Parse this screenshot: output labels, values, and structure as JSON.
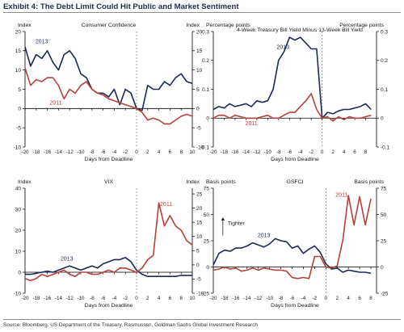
{
  "exhibit_title": "Exhibit 4: The Debt Limit Could Hit Public and Market Sentiment",
  "source_note": "Source: Bloomberg, US Department of the Treasury, Rasmussen, Goldman Sachs Global Investment Research",
  "colors": {
    "series_2013": "#1b2a55",
    "series_2011": "#b5413a",
    "axis": "#000000",
    "deadline_line": "#8a8a8a"
  },
  "chart_data": [
    {
      "id": "consumer-confidence",
      "type": "line",
      "title": "Consumer Confidence",
      "left_unit": "Index",
      "right_unit": "Index",
      "xlabel": "Days from Deadline",
      "xlim": [
        -20,
        10
      ],
      "xticks": [
        -20,
        -18,
        -16,
        -14,
        -12,
        -10,
        -8,
        -6,
        -4,
        -2,
        0,
        2,
        4,
        6,
        8,
        10
      ],
      "ylim": [
        -10,
        20
      ],
      "yticks": [
        -10,
        -5,
        0,
        5,
        10,
        15,
        20
      ],
      "right_ylim": [
        -10,
        20
      ],
      "right_yticks": [
        -10,
        -5,
        0,
        5,
        10,
        15,
        20
      ],
      "deadline": 0,
      "series": [
        {
          "name": "2013",
          "color": "#1b2a55",
          "x": [
            -20,
            -19,
            -18,
            -17,
            -16,
            -15,
            -14,
            -13,
            -12,
            -11,
            -10,
            -9,
            -8,
            -7,
            -6,
            -5,
            -4,
            -3,
            -2,
            -1,
            0,
            1,
            2,
            3,
            4,
            5,
            6,
            7,
            8,
            9,
            10
          ],
          "y": [
            16,
            11,
            14,
            13,
            15,
            12,
            10,
            14,
            15,
            13,
            9,
            8,
            5,
            4,
            4,
            3,
            5,
            1,
            5,
            4,
            0,
            -0.5,
            6,
            5,
            5,
            7,
            6,
            8,
            9,
            7,
            6.5
          ]
        },
        {
          "name": "2011",
          "color": "#b5413a",
          "x": [
            -20,
            -19,
            -18,
            -17,
            -16,
            -15,
            -14,
            -13,
            -12,
            -11,
            -10,
            -9,
            -8,
            -7,
            -6,
            -5,
            -4,
            -3,
            -2,
            -1,
            0,
            1,
            2,
            3,
            4,
            5,
            6,
            7,
            8,
            9,
            10
          ],
          "y": [
            10.5,
            6,
            7.5,
            7,
            8,
            8,
            6,
            2.5,
            5,
            4,
            6,
            7,
            5,
            4,
            3.5,
            2.5,
            2,
            1.5,
            1,
            0.5,
            0,
            -1,
            -3,
            -2.5,
            -3,
            -4,
            -4,
            -3,
            -2,
            -1.5,
            -2
          ]
        }
      ],
      "series_labels": [
        {
          "text": "2013",
          "x": -17,
          "y": 17
        },
        {
          "text": "2011",
          "x": -14.5,
          "y": 1
        }
      ]
    },
    {
      "id": "bill-yield-spread",
      "type": "line",
      "title": "4-Week Treasury Bill Yield Minus 13-Week Bill Yield",
      "left_unit": "Percentage points",
      "right_unit": "Percentage points",
      "xlabel": "Days from Deadline",
      "xlim": [
        -20,
        10
      ],
      "xticks": [
        -20,
        -18,
        -16,
        -14,
        -12,
        -10,
        -8,
        -6,
        -4,
        -2,
        0,
        2,
        4,
        6,
        8
      ],
      "ylim": [
        -0.1,
        0.3
      ],
      "yticks": [
        -0.1,
        0,
        0.1,
        0.2,
        0.3
      ],
      "right_ylim": [
        -0.1,
        0.3
      ],
      "right_yticks": [
        -0.1,
        0,
        0.1,
        0.2,
        0.3
      ],
      "deadline": 0,
      "series": [
        {
          "name": "2013",
          "color": "#1b2a55",
          "x": [
            -20,
            -19,
            -18,
            -17,
            -16,
            -15,
            -14,
            -13,
            -12,
            -11,
            -10,
            -9,
            -8,
            -7,
            -6,
            -5,
            -4,
            -3,
            -2,
            -1,
            0,
            1,
            2,
            3,
            4,
            5,
            6,
            7,
            8,
            9
          ],
          "y": [
            0.03,
            0.04,
            0.035,
            0.05,
            0.04,
            0.045,
            0.05,
            0.04,
            0.06,
            0.055,
            0.06,
            0.1,
            0.2,
            0.23,
            0.28,
            0.27,
            0.28,
            0.26,
            0.24,
            0.24,
            0.0,
            0.02,
            0.015,
            0.025,
            0.03,
            0.03,
            0.035,
            0.04,
            0.05,
            0.03
          ]
        },
        {
          "name": "2011",
          "color": "#b5413a",
          "x": [
            -20,
            -19,
            -18,
            -17,
            -16,
            -15,
            -14,
            -13,
            -12,
            -11,
            -10,
            -9,
            -8,
            -7,
            -6,
            -5,
            -4,
            -3,
            -2,
            -1,
            0,
            1,
            2,
            3,
            4,
            5,
            6,
            7,
            8,
            9
          ],
          "y": [
            0,
            0.01,
            0.01,
            0,
            0.01,
            0.005,
            0,
            0,
            0,
            0.005,
            0.01,
            0,
            0,
            0.01,
            0.02,
            0.02,
            0.04,
            0.06,
            0.085,
            0.03,
            0,
            0.005,
            -0.01,
            0.005,
            -0.005,
            0.005,
            0,
            0,
            0.005,
            0.01
          ]
        }
      ],
      "series_labels": [
        {
          "text": "2013",
          "x": -7.2,
          "y": 0.24
        },
        {
          "text": "2011",
          "x": -13,
          "y": -0.025
        }
      ]
    },
    {
      "id": "vix",
      "type": "line",
      "title": "VIX",
      "left_unit": "Index",
      "right_unit": "Index",
      "xlabel": "Days from Deadline",
      "xlim": [
        -20,
        10
      ],
      "xticks": [
        -20,
        -18,
        -16,
        -14,
        -12,
        -10,
        -8,
        -6,
        -4,
        -2,
        0,
        2,
        4,
        6,
        8,
        10
      ],
      "ylim": [
        -10,
        40
      ],
      "yticks": [
        -10,
        0,
        10,
        20,
        30,
        40
      ],
      "right_ylim": [
        -10,
        27
      ],
      "right_yticks": [
        -10,
        -5,
        0,
        5,
        10,
        15,
        20,
        25
      ],
      "deadline": 0,
      "series": [
        {
          "name": "2013",
          "color": "#1b2a55",
          "x": [
            -20,
            -19,
            -18,
            -17,
            -16,
            -15,
            -14,
            -13,
            -12,
            -11,
            -10,
            -9,
            -8,
            -7,
            -6,
            -5,
            -4,
            -3,
            -2,
            -1,
            0,
            1,
            2,
            3,
            4,
            5,
            6,
            7,
            8,
            9,
            10
          ],
          "y": [
            -1,
            -1,
            -0.5,
            0,
            0.5,
            0,
            1,
            2,
            3,
            2,
            1,
            2,
            3,
            2,
            4,
            5,
            6,
            6,
            7,
            5,
            1,
            -1,
            -2,
            -2,
            -2,
            -2,
            -2,
            -2,
            -1.5,
            -1.5,
            -1.5
          ]
        },
        {
          "name": "2011",
          "color": "#b5413a",
          "x": [
            -20,
            -19,
            -18,
            -17,
            -16,
            -15,
            -14,
            -13,
            -12,
            -11,
            -10,
            -9,
            -8,
            -7,
            -6,
            -5,
            -4,
            -3,
            -2,
            -1,
            0,
            1,
            2,
            3,
            4,
            5,
            6,
            7,
            8,
            9,
            10
          ],
          "y": [
            -3,
            -4,
            -3,
            -1,
            -2,
            -1,
            0,
            1,
            -1,
            -2,
            0,
            0,
            -1,
            -1,
            0,
            1,
            0,
            2,
            2,
            1,
            0,
            2,
            6,
            8,
            33,
            22,
            27,
            22,
            20,
            15,
            13
          ]
        }
      ],
      "series_labels": [
        {
          "text": "2013",
          "x": -12.5,
          "y": 5.5
        },
        {
          "text": "2011",
          "x": 5.3,
          "y": 31.5
        }
      ]
    },
    {
      "id": "gsfci",
      "type": "line",
      "title": "GSFCI",
      "left_unit": "Basis points",
      "right_unit": "Basis points",
      "xlabel": "Days from Deadline",
      "xlim": [
        -20,
        9
      ],
      "xticks": [
        -20,
        -18,
        -16,
        -14,
        -12,
        -10,
        -8,
        -6,
        -4,
        -2,
        0,
        2,
        4,
        6,
        8
      ],
      "ylim": [
        -25,
        75
      ],
      "yticks": [
        -25,
        0,
        25,
        50,
        75
      ],
      "right_ylim": [
        -25,
        75
      ],
      "right_yticks": [
        -25,
        0,
        25,
        50,
        75
      ],
      "deadline": 0,
      "annotation": "Tighter",
      "series": [
        {
          "name": "2013",
          "color": "#1b2a55",
          "x": [
            -20,
            -19,
            -18,
            -17,
            -16,
            -15,
            -14,
            -13,
            -12,
            -11,
            -10,
            -9,
            -8,
            -7,
            -6,
            -5,
            -4,
            -3,
            -2,
            -1,
            0,
            1,
            2,
            3,
            4,
            5,
            6,
            7,
            8
          ],
          "y": [
            2,
            13,
            16,
            15,
            18,
            18,
            20,
            23,
            21,
            19,
            22,
            27,
            25,
            24,
            18,
            20,
            13,
            17,
            20,
            14,
            3,
            -2,
            -1,
            -5,
            -3,
            -4,
            -5,
            -5,
            -6
          ]
        },
        {
          "name": "2011",
          "color": "#b5413a",
          "x": [
            -20,
            -19,
            -18,
            -17,
            -16,
            -15,
            -14,
            -13,
            -12,
            -11,
            -10,
            -9,
            -8,
            -7,
            -6,
            -5,
            -4,
            -3,
            -2,
            -1,
            0,
            1,
            2,
            3,
            4,
            5,
            6,
            7,
            8
          ],
          "y": [
            -3,
            -2,
            0,
            -2,
            -1,
            -4,
            -3,
            -1,
            -3,
            -1,
            -2,
            -3,
            -3,
            -4,
            -10,
            -11,
            -10,
            -11,
            10,
            10,
            0,
            -1,
            1,
            25,
            68,
            40,
            67,
            40,
            65
          ]
        }
      ],
      "series_labels": [
        {
          "text": "2013",
          "x": -11,
          "y": 28.5
        },
        {
          "text": "2011",
          "x": 2.8,
          "y": 67
        }
      ]
    }
  ]
}
